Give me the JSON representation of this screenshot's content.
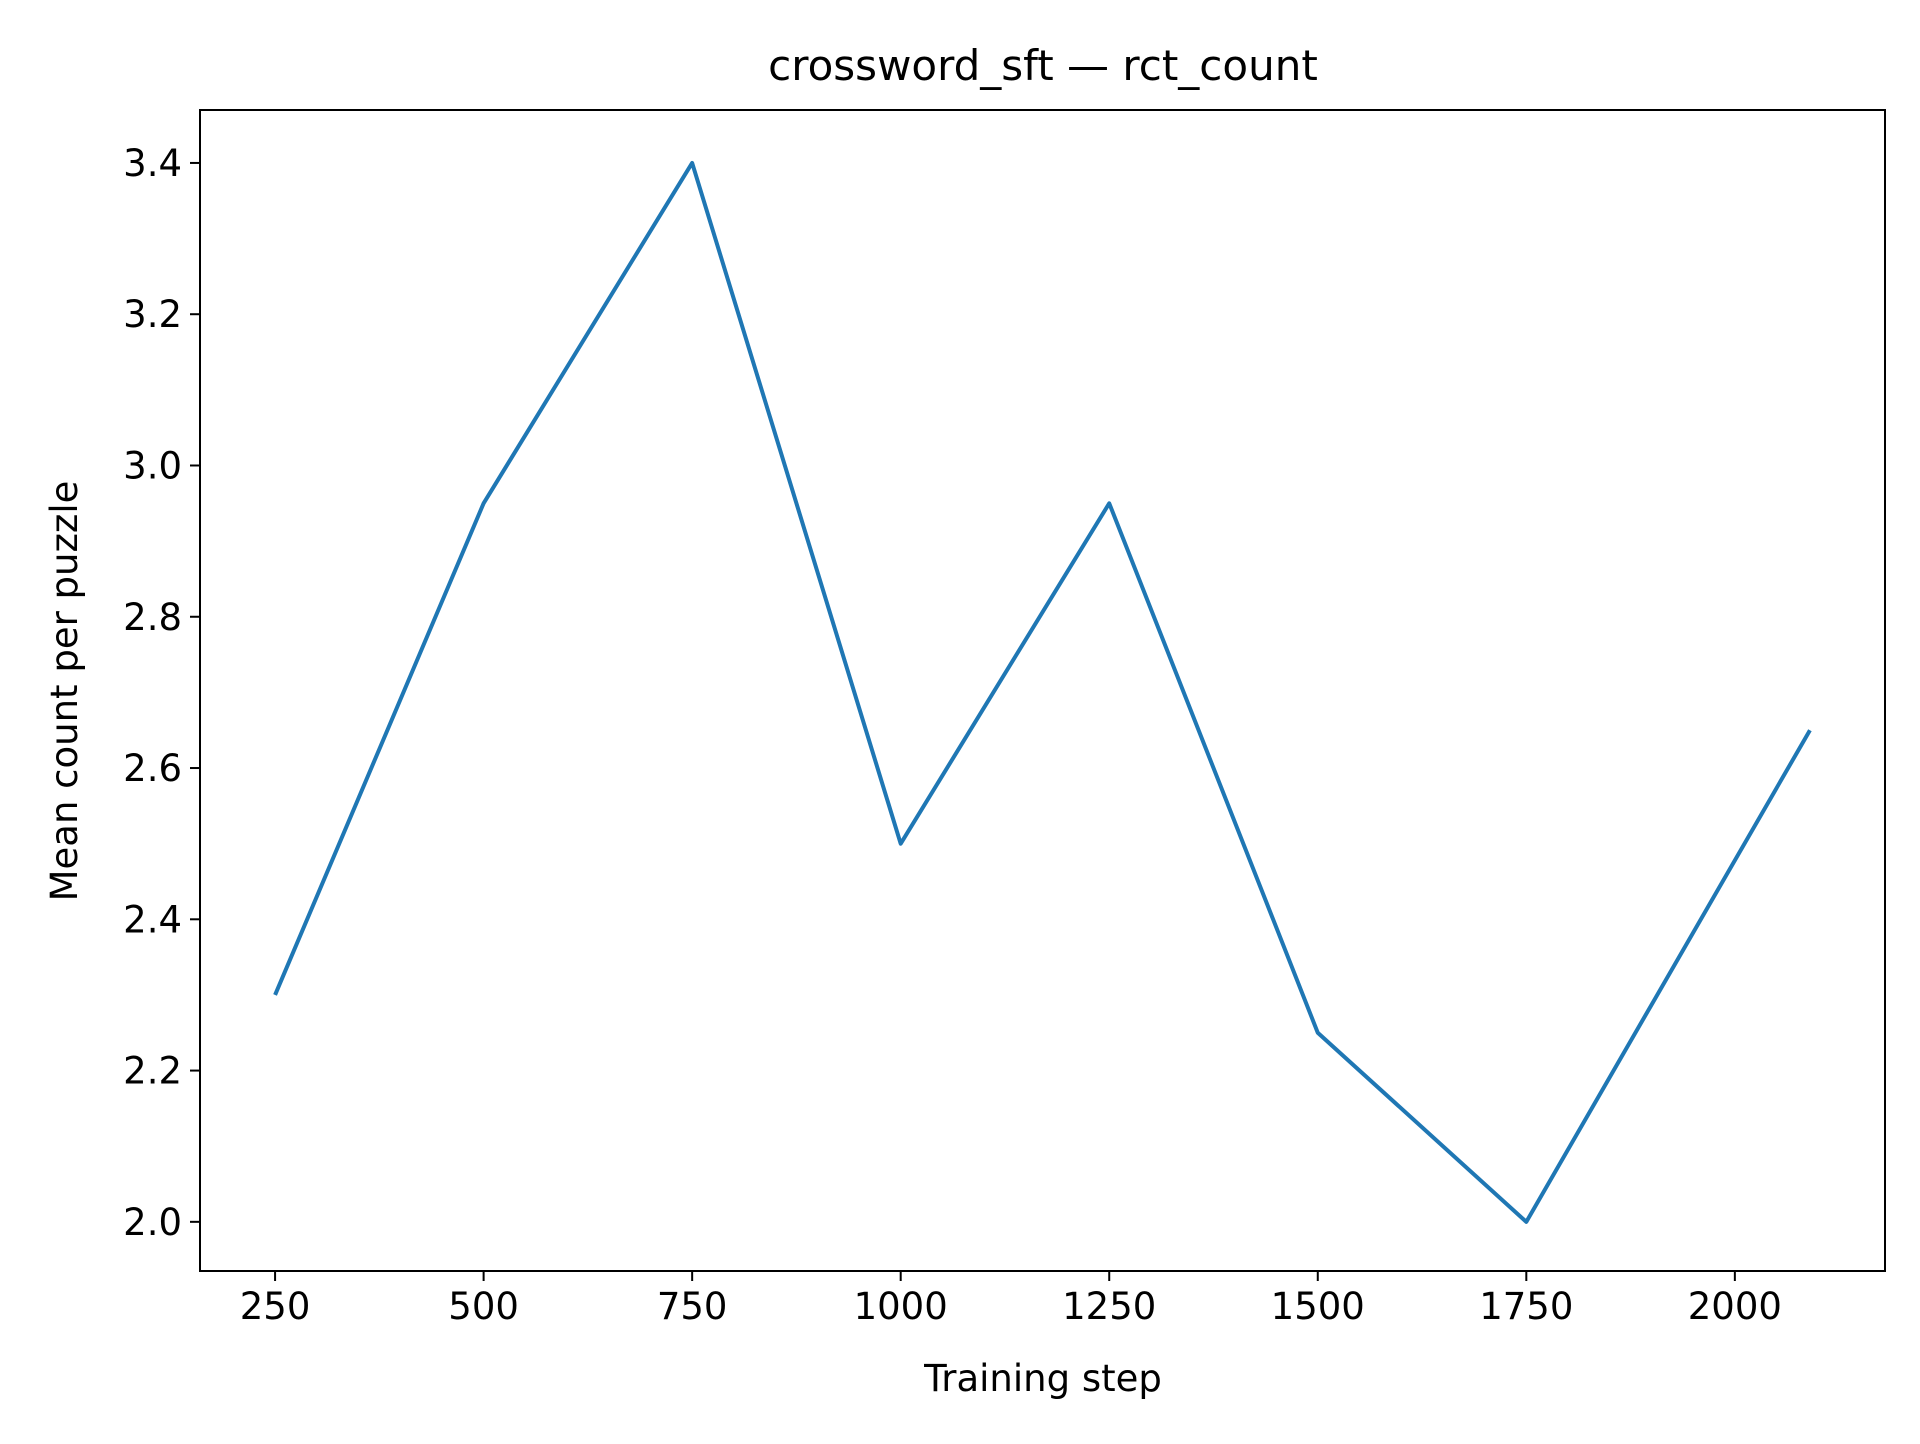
{
  "chart_data": {
    "type": "line",
    "title": "crossword_sft — rct_count",
    "xlabel": "Training step",
    "ylabel": "Mean count per puzzle",
    "xlim": [
      160,
      2180
    ],
    "ylim": [
      1.935,
      3.47
    ],
    "xticks": [
      250,
      500,
      750,
      1000,
      1250,
      1500,
      1750,
      2000
    ],
    "yticks": [
      2.0,
      2.2,
      2.4,
      2.6,
      2.8,
      3.0,
      3.2,
      3.4
    ],
    "ytick_labels": [
      "2.0",
      "2.2",
      "2.4",
      "2.6",
      "2.8",
      "3.0",
      "3.2",
      "3.4"
    ],
    "grid": false,
    "legend": "none",
    "series": [
      {
        "color": "#1f77b4",
        "x": [
          250,
          500,
          750,
          1000,
          1250,
          1500,
          1750,
          2090
        ],
        "y": [
          2.3,
          2.95,
          3.4,
          2.5,
          2.95,
          2.25,
          2.0,
          2.65
        ]
      }
    ]
  }
}
